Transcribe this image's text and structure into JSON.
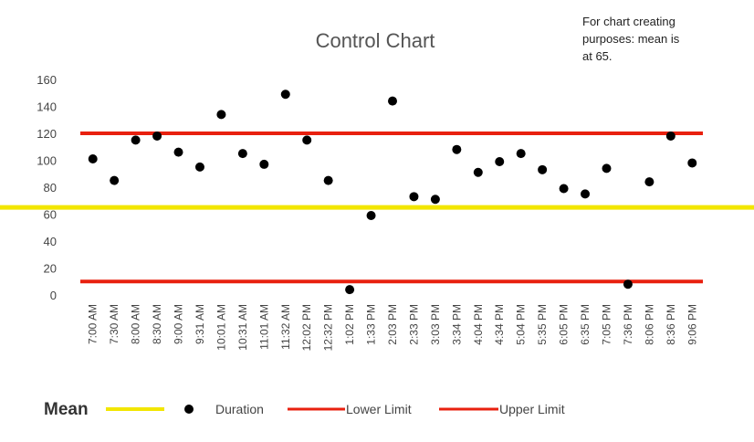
{
  "note": {
    "line1": "For chart creating",
    "line2": "purposes: mean is",
    "line3": "at 65."
  },
  "colors": {
    "mean": "#f2e600",
    "limits": "#e8200f",
    "points": "#000000",
    "text": "#444444"
  },
  "chart_data": {
    "type": "scatter",
    "title": "Control Chart",
    "xlabel": "",
    "ylabel": "",
    "ylim": [
      0,
      160
    ],
    "yticks": [
      0,
      20,
      40,
      60,
      80,
      100,
      120,
      140,
      160
    ],
    "grid": false,
    "legend": "bottom",
    "categories": [
      "7:00 AM",
      "7:30 AM",
      "8:00 AM",
      "8:30 AM",
      "9:00 AM",
      "9:31 AM",
      "10:01 AM",
      "10:31 AM",
      "11:01 AM",
      "11:32 AM",
      "12:02 PM",
      "12:32 PM",
      "1:02 PM",
      "1:33 PM",
      "2:03 PM",
      "2:33 PM",
      "3:03 PM",
      "3:34 PM",
      "4:04 PM",
      "4:34 PM",
      "5:04 PM",
      "5:35 PM",
      "6:05 PM",
      "6:35 PM",
      "7:05 PM",
      "7:36 PM",
      "8:06 PM",
      "8:36 PM",
      "9:06 PM"
    ],
    "series": [
      {
        "name": "Duration",
        "type": "scatter",
        "values": [
          101,
          85,
          115,
          118,
          106,
          95,
          134,
          105,
          97,
          149,
          115,
          85,
          4,
          59,
          144,
          73,
          71,
          108,
          91,
          99,
          105,
          93,
          79,
          75,
          94,
          8,
          84,
          118,
          98
        ]
      },
      {
        "name": "Mean",
        "type": "line",
        "value": 65
      },
      {
        "name": "Lower Limit",
        "type": "line",
        "value": 10
      },
      {
        "name": "Upper Limit",
        "type": "line",
        "value": 120
      }
    ],
    "legend_labels": {
      "mean": "Mean",
      "duration": "Duration",
      "lower": "Lower Limit",
      "upper": "Upper Limit"
    }
  }
}
